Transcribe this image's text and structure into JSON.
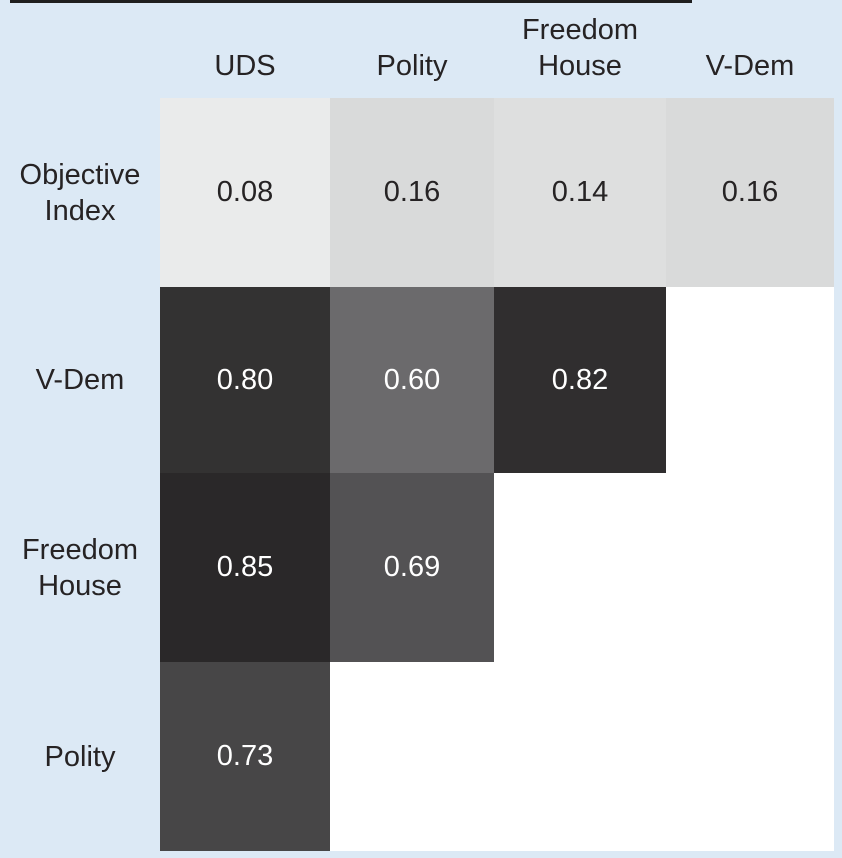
{
  "figure": {
    "name": "correlation-matrix-of-democracy-indices",
    "background_color": "#dce9f5",
    "empty_cell_color": "#ffffff",
    "dark_text_color": "#262324",
    "light_text_color": "#ffffff",
    "top_border_color": "#1f1f1f"
  },
  "chart_data": {
    "type": "heatmap",
    "title": "",
    "columns": [
      "UDS",
      "Polity",
      "Freedom House",
      "V-Dem"
    ],
    "rows": [
      "Objective Index",
      "V-Dem",
      "Freedom House",
      "Polity"
    ],
    "values": [
      [
        0.08,
        0.16,
        0.14,
        0.16
      ],
      [
        0.8,
        0.6,
        0.82,
        null
      ],
      [
        0.85,
        0.69,
        null,
        null
      ],
      [
        0.73,
        null,
        null,
        null
      ]
    ],
    "value_labels": [
      [
        "0.08",
        "0.16",
        "0.14",
        "0.16"
      ],
      [
        "0.80",
        "0.60",
        "0.82",
        ""
      ],
      [
        "0.85",
        "0.69",
        "",
        ""
      ],
      [
        "0.73",
        "",
        "",
        ""
      ]
    ],
    "cell_colors": [
      [
        "#eaebeb",
        "#d9dada",
        "#dedfdf",
        "#d9dada"
      ],
      [
        "#333232",
        "#6b6a6c",
        "#302e2f",
        ""
      ],
      [
        "#2a2829",
        "#535254",
        "",
        ""
      ],
      [
        "#474647",
        "",
        "",
        ""
      ]
    ],
    "color_scale": "grayscale, darker = higher correlation, gray ~ (1 - value)",
    "legend": "none",
    "grid": "off",
    "layout": "lower-triangular matrix plus top row; empty cells white"
  }
}
